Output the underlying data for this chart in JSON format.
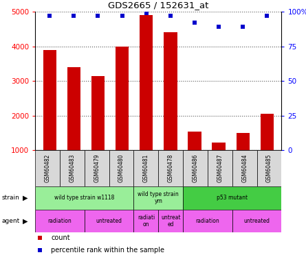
{
  "title": "GDS2665 / 152631_at",
  "samples": [
    "GSM60482",
    "GSM60483",
    "GSM60479",
    "GSM60480",
    "GSM60481",
    "GSM60478",
    "GSM60486",
    "GSM60487",
    "GSM60484",
    "GSM60485"
  ],
  "counts": [
    3900,
    3400,
    3150,
    4000,
    4900,
    4400,
    1550,
    1230,
    1500,
    2050
  ],
  "percentiles": [
    97,
    97,
    97,
    97,
    99,
    97,
    92,
    89,
    89,
    97
  ],
  "ylim_left": [
    1000,
    5000
  ],
  "ylim_right": [
    0,
    100
  ],
  "yticks_left": [
    1000,
    2000,
    3000,
    4000,
    5000
  ],
  "yticks_right": [
    0,
    25,
    50,
    75,
    100
  ],
  "bar_color": "#cc0000",
  "scatter_color": "#0000cc",
  "grid_color": "#555555",
  "bg_color": "#d8d8d8",
  "legend_count_color": "#cc0000",
  "legend_pct_color": "#0000cc",
  "strain_groups": [
    {
      "label": "wild type strain w1118",
      "start": 0,
      "end": 4,
      "color": "#99ee99"
    },
    {
      "label": "wild type strain\nym",
      "start": 4,
      "end": 6,
      "color": "#99ee99"
    },
    {
      "label": "p53 mutant",
      "start": 6,
      "end": 10,
      "color": "#44cc44"
    }
  ],
  "agent_groups": [
    {
      "label": "radiation",
      "start": 0,
      "end": 2
    },
    {
      "label": "untreated",
      "start": 2,
      "end": 4
    },
    {
      "label": "radiati\non",
      "start": 4,
      "end": 5
    },
    {
      "label": "untreat\ned",
      "start": 5,
      "end": 6
    },
    {
      "label": "radiation",
      "start": 6,
      "end": 8
    },
    {
      "label": "untreated",
      "start": 8,
      "end": 10
    }
  ],
  "agent_color": "#ee66ee"
}
